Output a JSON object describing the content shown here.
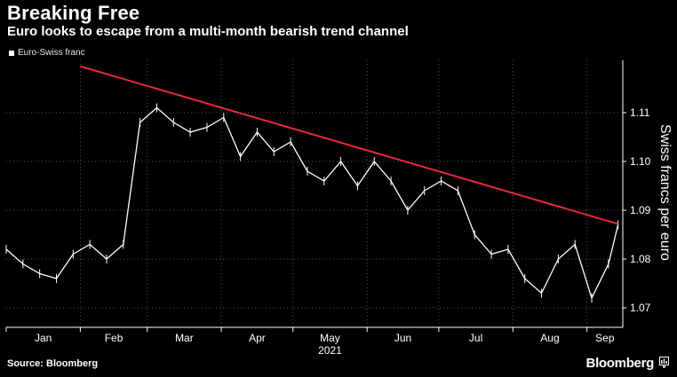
{
  "title": "Breaking Free",
  "subtitle": "Euro looks to escape from a multi-month bearish trend channel",
  "source": "Source: Bloomberg",
  "brand": "Bloomberg",
  "colors": {
    "background": "#000000",
    "price": "#ffffff",
    "trendline": "#e8283a",
    "grid": "#555555"
  },
  "chart_data": {
    "type": "line",
    "title": "Breaking Free",
    "subtitle": "Euro looks to escape from a multi-month bearish trend channel",
    "series": [
      {
        "name": "Euro-Swiss franc",
        "x": [
          "Jan 1",
          "Jan 8",
          "Jan 15",
          "Jan 22",
          "Jan 29",
          "Feb 5",
          "Feb 12",
          "Feb 19",
          "Feb 26",
          "Mar 5",
          "Mar 12",
          "Mar 19",
          "Mar 26",
          "Apr 2",
          "Apr 9",
          "Apr 16",
          "Apr 23",
          "Apr 30",
          "May 7",
          "May 14",
          "May 21",
          "May 28",
          "Jun 4",
          "Jun 11",
          "Jun 18",
          "Jun 25",
          "Jul 2",
          "Jul 9",
          "Jul 16",
          "Jul 23",
          "Jul 30",
          "Aug 6",
          "Aug 13",
          "Aug 20",
          "Aug 27",
          "Sep 3",
          "Sep 10",
          "Sep 14"
        ],
        "values": [
          1.082,
          1.079,
          1.077,
          1.076,
          1.081,
          1.083,
          1.08,
          1.083,
          1.108,
          1.111,
          1.108,
          1.106,
          1.107,
          1.109,
          1.101,
          1.106,
          1.102,
          1.104,
          1.098,
          1.096,
          1.1,
          1.095,
          1.1,
          1.096,
          1.09,
          1.094,
          1.096,
          1.094,
          1.085,
          1.081,
          1.082,
          1.076,
          1.073,
          1.08,
          1.083,
          1.072,
          1.079,
          1.087
        ]
      },
      {
        "name": "Bearish trendline",
        "x": [
          "Feb 1",
          "Sep 14"
        ],
        "values": [
          1.1195,
          1.0872
        ]
      }
    ],
    "xlabel": "2021",
    "ylabel": "Swiss francs per euro",
    "x_ticks": [
      "Jan",
      "Feb",
      "Mar",
      "Apr",
      "May",
      "Jun",
      "Jul",
      "Aug",
      "Sep"
    ],
    "y_ticks": [
      1.07,
      1.08,
      1.09,
      1.1,
      1.11
    ],
    "ylim": [
      1.066,
      1.12
    ],
    "legend": "top-left"
  }
}
